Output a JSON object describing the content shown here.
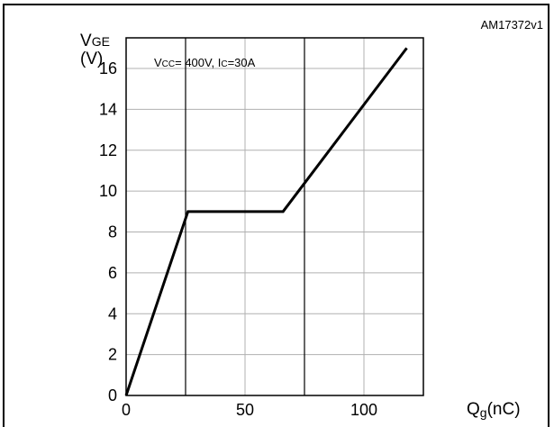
{
  "figure": {
    "ref_code": "AM17372v1"
  },
  "chart_data": {
    "type": "line",
    "title": "",
    "ylabel_main": "V",
    "ylabel_sub": "GE",
    "ylabel_unit": "(V)",
    "xlabel_main": "Q",
    "xlabel_sub": "g",
    "xlabel_unit": "(nC)",
    "annotation": {
      "vcc_main": "V",
      "vcc_sub": "CC",
      "vcc_rest": "= 400V, I",
      "ic_sub": "C",
      "ic_rest": "=30A"
    },
    "xlim": [
      0,
      125
    ],
    "ylim": [
      0,
      17.5
    ],
    "x_ticks": [
      0,
      50,
      100
    ],
    "y_ticks": [
      0,
      2,
      4,
      6,
      8,
      10,
      12,
      14,
      16
    ],
    "x_major_lines": [
      25,
      75,
      125
    ],
    "x_minor_lines": [
      50,
      100
    ],
    "grid": true,
    "series": [
      {
        "x": [
          0,
          26,
          66,
          118
        ],
        "y": [
          0,
          9,
          9,
          17
        ]
      }
    ]
  }
}
